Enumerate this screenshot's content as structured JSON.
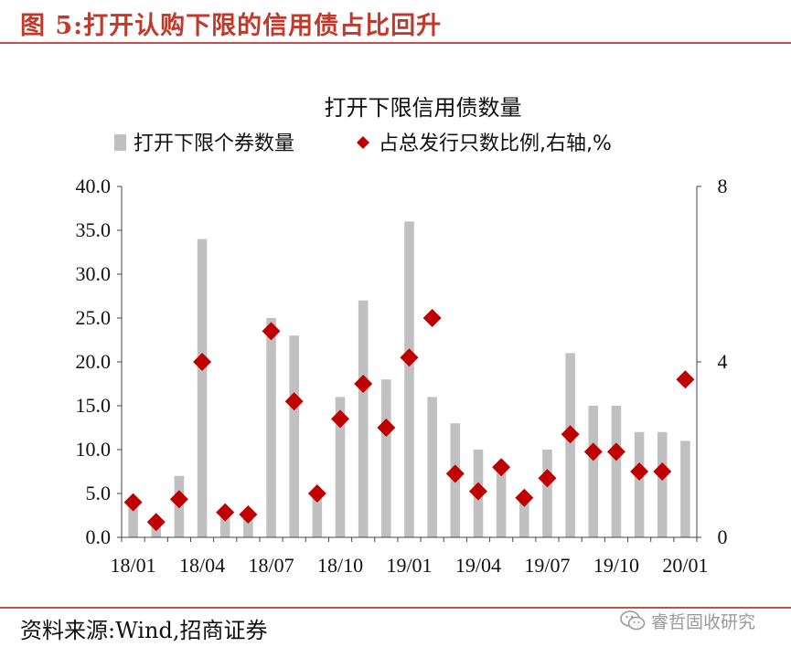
{
  "figure": {
    "label": "图 5:打开认购下限的信用债占比回升",
    "source": "资料来源:Wind,招商证券",
    "watermark": "睿哲固收研究"
  },
  "colors": {
    "brand_red": "#c0504d",
    "title_red": "#c0392b",
    "bar_gray": "#c0c0c0",
    "marker_red": "#c00000"
  },
  "icons": {
    "watermark_icon": "wechat-icon"
  },
  "chart_data": {
    "type": "bar",
    "title": "打开下限信用债数量",
    "legend_position": "top",
    "categories": [
      "18/01",
      "18/02",
      "18/03",
      "18/04",
      "18/05",
      "18/06",
      "18/07",
      "18/08",
      "18/09",
      "18/10",
      "18/11",
      "18/12",
      "19/01",
      "19/02",
      "19/03",
      "19/04",
      "19/05",
      "19/06",
      "19/07",
      "19/08",
      "19/09",
      "19/10",
      "19/11",
      "19/12",
      "20/01"
    ],
    "x_tick_labels": [
      "18/01",
      "18/04",
      "18/07",
      "18/10",
      "19/01",
      "19/04",
      "19/07",
      "19/10",
      "20/01"
    ],
    "series": [
      {
        "name": "打开下限个券数量",
        "type": "bar",
        "axis": "left",
        "color": "#c0c0c0",
        "values": [
          4,
          2,
          7,
          34,
          3,
          3,
          25,
          23,
          5,
          16,
          27,
          18,
          36,
          16,
          13,
          10,
          8,
          5,
          10,
          21,
          15,
          15,
          12,
          12,
          11
        ]
      },
      {
        "name": "占总发行只数比例,右轴,%",
        "type": "scatter",
        "axis": "right",
        "color": "#c00000",
        "marker": "diamond",
        "values": [
          0.8,
          0.35,
          0.87,
          4.0,
          0.57,
          0.52,
          4.7,
          3.1,
          1.0,
          2.7,
          3.5,
          2.5,
          4.1,
          5.0,
          1.45,
          1.05,
          1.6,
          0.9,
          1.35,
          2.35,
          1.95,
          1.95,
          1.5,
          1.5,
          3.6
        ]
      }
    ],
    "y_left": {
      "ylim": [
        0,
        40
      ],
      "ticks": [
        "0.0",
        "5.0",
        "10.0",
        "15.0",
        "20.0",
        "25.0",
        "30.0",
        "35.0",
        "40.0"
      ]
    },
    "y_right": {
      "ylim": [
        0,
        8
      ],
      "ticks": [
        "0",
        "4",
        "8"
      ]
    },
    "grid": false
  }
}
